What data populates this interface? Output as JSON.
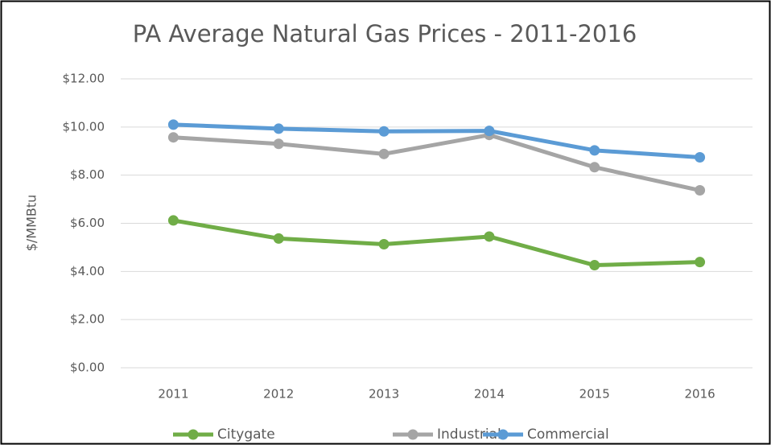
{
  "chart_data": {
    "type": "line",
    "title": "PA Average Natural Gas Prices - 2011-2016",
    "y_label": "$/MMBtu",
    "categories": [
      "2011",
      "2012",
      "2013",
      "2014",
      "2015",
      "2016"
    ],
    "series": [
      {
        "name": "Citygate",
        "color": "#70ad47",
        "values": [
          6.12,
          5.37,
          5.13,
          5.45,
          4.26,
          4.39
        ]
      },
      {
        "name": "Industrial",
        "color": "#a5a5a5",
        "values": [
          9.57,
          9.3,
          8.88,
          9.67,
          8.33,
          7.37
        ]
      },
      {
        "name": "Commercial",
        "color": "#5b9bd5",
        "values": [
          10.1,
          9.93,
          9.82,
          9.84,
          9.03,
          8.74
        ]
      }
    ],
    "ylim": [
      0,
      12
    ],
    "yticks": [
      {
        "value": 0,
        "label": "$0.00"
      },
      {
        "value": 2,
        "label": "$2.00"
      },
      {
        "value": 4,
        "label": "$4.00"
      },
      {
        "value": 6,
        "label": "$6.00"
      },
      {
        "value": 8,
        "label": "$8.00"
      },
      {
        "value": 10,
        "label": "$10.00"
      },
      {
        "value": 12,
        "label": "$12.00"
      }
    ],
    "grid": true,
    "legend": "bottom"
  }
}
